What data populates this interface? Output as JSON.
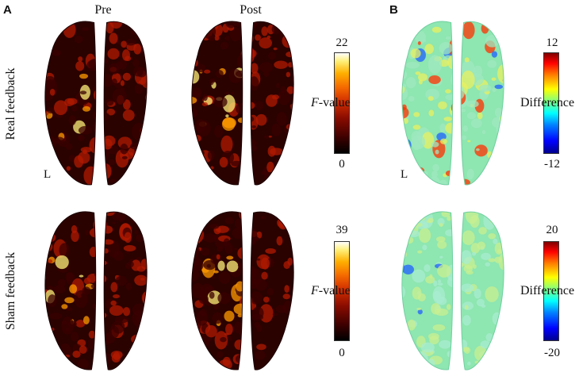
{
  "panels": {
    "a_letter": "A",
    "b_letter": "B"
  },
  "columns": {
    "pre": "Pre",
    "post": "Post"
  },
  "rows": {
    "real": "Real feedback",
    "sham": "Sham feedback"
  },
  "hemisphere_label": "L",
  "colorbars": {
    "real_fvalue": {
      "title_italic": "F",
      "title_rest": "-value",
      "max": "22",
      "min": "0",
      "map": "hot"
    },
    "sham_fvalue": {
      "title_italic": "F",
      "title_rest": "-value",
      "max": "39",
      "min": "0",
      "map": "hot"
    },
    "real_diff": {
      "title": "Difference",
      "max": "12",
      "min": "-12",
      "map": "jet"
    },
    "sham_diff": {
      "title": "Difference",
      "max": "20",
      "min": "-20",
      "map": "jet"
    }
  },
  "colors": {
    "heat_dark": "#3a0000",
    "heat_mid": "#b01a00",
    "heat_hot": "#ff9a00",
    "heat_peak": "#fff07a",
    "jet_base": "#8ee6b0",
    "jet_warm": "#e8f060",
    "jet_cold": "#2060ff",
    "jet_hot": "#ff3000"
  }
}
